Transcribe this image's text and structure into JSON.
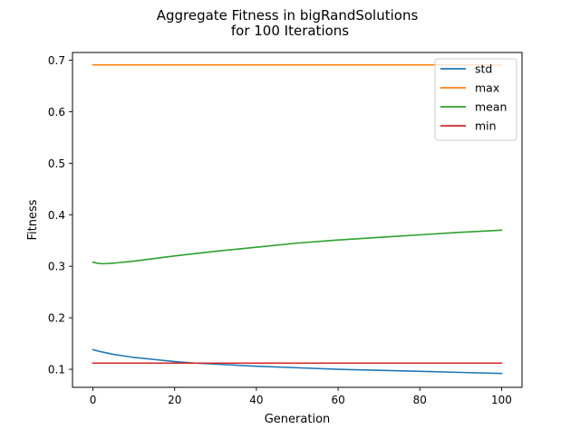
{
  "chart_data": {
    "type": "line",
    "title_line1": "Aggregate Fitness in bigRandSolutions",
    "title_line2": "for 100 Iterations",
    "xlabel": "Generation",
    "ylabel": "Fitness",
    "xlim": [
      -5,
      105
    ],
    "ylim": [
      0.065,
      0.715
    ],
    "xticks": [
      0,
      20,
      40,
      60,
      80,
      100
    ],
    "xtick_labels": [
      "0",
      "20",
      "40",
      "60",
      "80",
      "100"
    ],
    "yticks": [
      0.1,
      0.2,
      0.3,
      0.4,
      0.5,
      0.6,
      0.7
    ],
    "ytick_labels": [
      "0.1",
      "0.2",
      "0.3",
      "0.4",
      "0.5",
      "0.6",
      "0.7"
    ],
    "grid": false,
    "legend_position": "top-right",
    "series": [
      {
        "name": "std",
        "color": "#1f77b4",
        "x": [
          0,
          2,
          5,
          10,
          15,
          20,
          25,
          30,
          40,
          50,
          60,
          70,
          80,
          90,
          100
        ],
        "y": [
          0.138,
          0.134,
          0.129,
          0.123,
          0.119,
          0.115,
          0.112,
          0.11,
          0.106,
          0.103,
          0.1,
          0.098,
          0.096,
          0.094,
          0.092
        ]
      },
      {
        "name": "max",
        "color": "#ff7f0e",
        "x": [
          0,
          100
        ],
        "y": [
          0.691,
          0.691
        ]
      },
      {
        "name": "mean",
        "color": "#2ca02c",
        "x": [
          0,
          1,
          2,
          3,
          5,
          10,
          15,
          20,
          30,
          40,
          50,
          60,
          70,
          80,
          90,
          100
        ],
        "y": [
          0.308,
          0.306,
          0.305,
          0.305,
          0.306,
          0.31,
          0.315,
          0.32,
          0.329,
          0.337,
          0.345,
          0.351,
          0.356,
          0.361,
          0.366,
          0.37
        ]
      },
      {
        "name": "min",
        "color": "#d62728",
        "x": [
          0,
          100
        ],
        "y": [
          0.112,
          0.112
        ]
      }
    ]
  }
}
